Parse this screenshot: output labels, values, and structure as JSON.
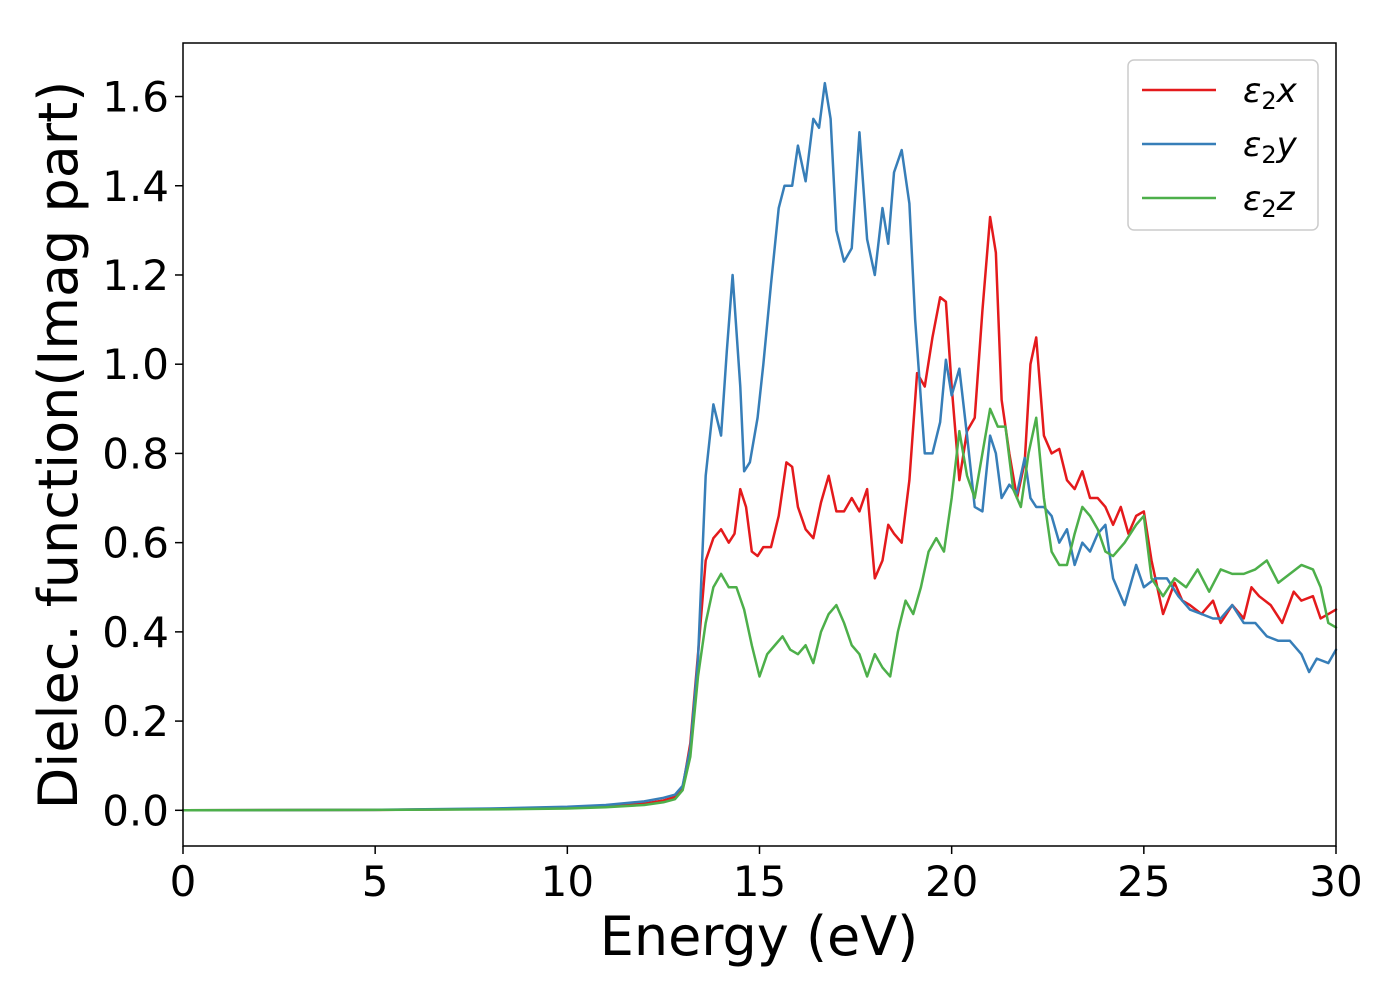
{
  "chart_data": {
    "type": "line",
    "title": "",
    "xlabel": "Energy (eV)",
    "ylabel": "Dielec. function(Imag part)",
    "xlim": [
      0,
      30
    ],
    "ylim": [
      -0.08,
      1.72
    ],
    "xticks": [
      0,
      5,
      10,
      15,
      20,
      25,
      30
    ],
    "yticks": [
      0.0,
      0.2,
      0.4,
      0.6,
      0.8,
      1.0,
      1.2,
      1.4,
      1.6
    ],
    "xtick_labels": [
      "0",
      "5",
      "10",
      "15",
      "20",
      "25",
      "30"
    ],
    "ytick_labels": [
      "0.0",
      "0.2",
      "0.4",
      "0.6",
      "0.8",
      "1.0",
      "1.2",
      "1.4",
      "1.6"
    ],
    "grid": false,
    "legend_position": "top-right",
    "series": [
      {
        "name": "ε₂x",
        "legend": {
          "symbol": "ε",
          "sub": "2",
          "axis": "x"
        },
        "color": "#e41a1c",
        "x": [
          0,
          5,
          8,
          10,
          11,
          12,
          12.5,
          12.8,
          13,
          13.2,
          13.4,
          13.6,
          13.8,
          14.0,
          14.2,
          14.35,
          14.5,
          14.65,
          14.8,
          14.95,
          15.1,
          15.3,
          15.5,
          15.7,
          15.85,
          16.0,
          16.2,
          16.4,
          16.6,
          16.8,
          17.0,
          17.2,
          17.4,
          17.6,
          17.8,
          18.0,
          18.2,
          18.35,
          18.5,
          18.7,
          18.9,
          19.1,
          19.3,
          19.5,
          19.7,
          19.85,
          20.0,
          20.2,
          20.4,
          20.6,
          20.8,
          21.0,
          21.15,
          21.3,
          21.5,
          21.7,
          21.9,
          22.05,
          22.2,
          22.4,
          22.6,
          22.8,
          23.0,
          23.2,
          23.4,
          23.6,
          23.8,
          24.0,
          24.2,
          24.4,
          24.6,
          24.8,
          25.0,
          25.2,
          25.5,
          25.8,
          26.0,
          26.2,
          26.5,
          26.8,
          27.0,
          27.3,
          27.6,
          27.8,
          28.0,
          28.3,
          28.6,
          28.9,
          29.1,
          29.4,
          29.6,
          29.8,
          30.0
        ],
        "values": [
          0.0,
          0.001,
          0.003,
          0.006,
          0.009,
          0.015,
          0.022,
          0.03,
          0.05,
          0.15,
          0.35,
          0.56,
          0.61,
          0.63,
          0.6,
          0.62,
          0.72,
          0.68,
          0.58,
          0.57,
          0.59,
          0.59,
          0.66,
          0.78,
          0.77,
          0.68,
          0.63,
          0.61,
          0.69,
          0.75,
          0.67,
          0.67,
          0.7,
          0.67,
          0.72,
          0.52,
          0.56,
          0.64,
          0.62,
          0.6,
          0.74,
          0.98,
          0.95,
          1.06,
          1.15,
          1.14,
          0.95,
          0.74,
          0.85,
          0.88,
          1.12,
          1.33,
          1.25,
          0.92,
          0.8,
          0.7,
          0.78,
          1.0,
          1.06,
          0.84,
          0.8,
          0.81,
          0.74,
          0.72,
          0.76,
          0.7,
          0.7,
          0.68,
          0.64,
          0.68,
          0.62,
          0.66,
          0.67,
          0.56,
          0.44,
          0.51,
          0.47,
          0.46,
          0.44,
          0.47,
          0.42,
          0.46,
          0.43,
          0.5,
          0.48,
          0.46,
          0.42,
          0.49,
          0.47,
          0.48,
          0.43,
          0.44,
          0.45
        ]
      },
      {
        "name": "ε₂y",
        "legend": {
          "symbol": "ε",
          "sub": "2",
          "axis": "y"
        },
        "color": "#377eb8",
        "x": [
          0,
          5,
          8,
          10,
          11,
          12,
          12.5,
          12.8,
          13,
          13.2,
          13.4,
          13.6,
          13.8,
          14.0,
          14.15,
          14.3,
          14.5,
          14.6,
          14.75,
          14.95,
          15.1,
          15.3,
          15.5,
          15.65,
          15.85,
          16.0,
          16.2,
          16.4,
          16.55,
          16.7,
          16.85,
          17.0,
          17.2,
          17.4,
          17.6,
          17.8,
          18.0,
          18.2,
          18.35,
          18.5,
          18.7,
          18.9,
          19.05,
          19.3,
          19.5,
          19.7,
          19.85,
          20.0,
          20.2,
          20.4,
          20.6,
          20.8,
          21.0,
          21.15,
          21.3,
          21.5,
          21.7,
          21.9,
          22.05,
          22.2,
          22.4,
          22.6,
          22.8,
          23.0,
          23.2,
          23.4,
          23.6,
          23.8,
          24.0,
          24.2,
          24.5,
          24.8,
          25.0,
          25.3,
          25.6,
          25.9,
          26.2,
          26.5,
          26.8,
          27.0,
          27.3,
          27.6,
          27.9,
          28.2,
          28.5,
          28.8,
          29.1,
          29.3,
          29.5,
          29.8,
          30.0
        ],
        "values": [
          0.0,
          0.001,
          0.004,
          0.008,
          0.012,
          0.02,
          0.028,
          0.035,
          0.055,
          0.14,
          0.34,
          0.75,
          0.91,
          0.84,
          1.03,
          1.2,
          0.95,
          0.76,
          0.78,
          0.88,
          1.0,
          1.18,
          1.35,
          1.4,
          1.4,
          1.49,
          1.41,
          1.55,
          1.53,
          1.63,
          1.55,
          1.3,
          1.23,
          1.26,
          1.52,
          1.28,
          1.2,
          1.35,
          1.27,
          1.43,
          1.48,
          1.36,
          1.1,
          0.8,
          0.8,
          0.87,
          1.01,
          0.93,
          0.99,
          0.84,
          0.68,
          0.67,
          0.84,
          0.8,
          0.7,
          0.73,
          0.71,
          0.79,
          0.7,
          0.68,
          0.68,
          0.66,
          0.6,
          0.63,
          0.55,
          0.6,
          0.58,
          0.62,
          0.64,
          0.52,
          0.46,
          0.55,
          0.5,
          0.52,
          0.52,
          0.48,
          0.45,
          0.44,
          0.43,
          0.43,
          0.46,
          0.42,
          0.42,
          0.39,
          0.38,
          0.38,
          0.35,
          0.31,
          0.34,
          0.33,
          0.36
        ]
      },
      {
        "name": "ε₂z",
        "legend": {
          "symbol": "ε",
          "sub": "2",
          "axis": "z"
        },
        "color": "#4daf4a",
        "x": [
          0,
          5,
          8,
          10,
          11,
          12,
          12.5,
          12.8,
          13,
          13.2,
          13.4,
          13.6,
          13.8,
          14.0,
          14.2,
          14.4,
          14.6,
          14.8,
          15.0,
          15.2,
          15.4,
          15.6,
          15.8,
          16.0,
          16.2,
          16.4,
          16.6,
          16.8,
          17.0,
          17.2,
          17.4,
          17.6,
          17.8,
          18.0,
          18.2,
          18.4,
          18.6,
          18.8,
          19.0,
          19.2,
          19.4,
          19.6,
          19.8,
          20.0,
          20.2,
          20.4,
          20.6,
          20.8,
          21.0,
          21.2,
          21.4,
          21.6,
          21.8,
          22.0,
          22.2,
          22.4,
          22.6,
          22.8,
          23.0,
          23.2,
          23.4,
          23.6,
          23.8,
          24.0,
          24.2,
          24.5,
          24.8,
          25.0,
          25.2,
          25.5,
          25.8,
          26.1,
          26.4,
          26.7,
          27.0,
          27.3,
          27.6,
          27.9,
          28.2,
          28.5,
          28.8,
          29.1,
          29.4,
          29.6,
          29.8,
          30.0
        ],
        "values": [
          0.0,
          0.001,
          0.002,
          0.004,
          0.007,
          0.012,
          0.018,
          0.025,
          0.045,
          0.12,
          0.3,
          0.42,
          0.5,
          0.53,
          0.5,
          0.5,
          0.45,
          0.37,
          0.3,
          0.35,
          0.37,
          0.39,
          0.36,
          0.35,
          0.37,
          0.33,
          0.4,
          0.44,
          0.46,
          0.42,
          0.37,
          0.35,
          0.3,
          0.35,
          0.32,
          0.3,
          0.4,
          0.47,
          0.44,
          0.5,
          0.58,
          0.61,
          0.58,
          0.7,
          0.85,
          0.75,
          0.7,
          0.8,
          0.9,
          0.86,
          0.86,
          0.72,
          0.68,
          0.8,
          0.88,
          0.7,
          0.58,
          0.55,
          0.55,
          0.62,
          0.68,
          0.66,
          0.63,
          0.58,
          0.57,
          0.6,
          0.64,
          0.66,
          0.52,
          0.48,
          0.52,
          0.5,
          0.54,
          0.49,
          0.54,
          0.53,
          0.53,
          0.54,
          0.56,
          0.51,
          0.53,
          0.55,
          0.54,
          0.5,
          0.42,
          0.41
        ]
      }
    ]
  }
}
